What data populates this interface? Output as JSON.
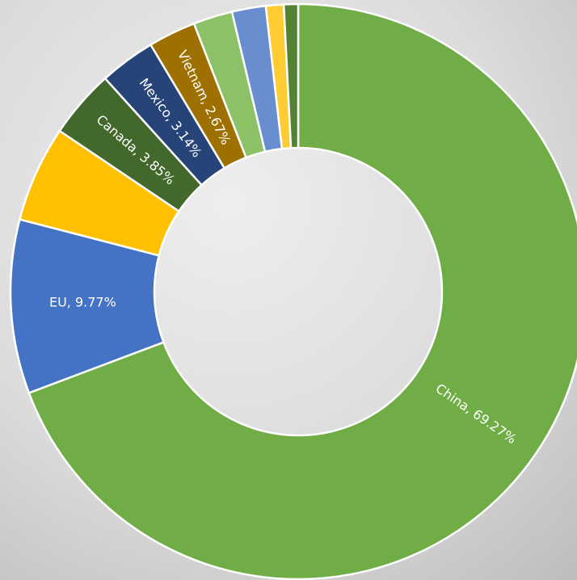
{
  "chart_data": {
    "type": "donut",
    "values": [
      69.27,
      9.77,
      5.4,
      3.85,
      3.14,
      2.67,
      2.2,
      1.9,
      1.0,
      0.8
    ],
    "value_labels": [
      "China, 69.27%",
      "EU, 9.77%",
      null,
      "Canada, 3.85%",
      "Mexico, 3.14%",
      "Vietnam, 2.67%",
      null,
      null,
      null,
      null
    ],
    "colors": [
      "#70ad47",
      "#4472c4",
      "#ffc000",
      "#43682b",
      "#264478",
      "#9e7000",
      "#8cc168",
      "#698ed0",
      "#ffcd33",
      "#548235"
    ]
  }
}
